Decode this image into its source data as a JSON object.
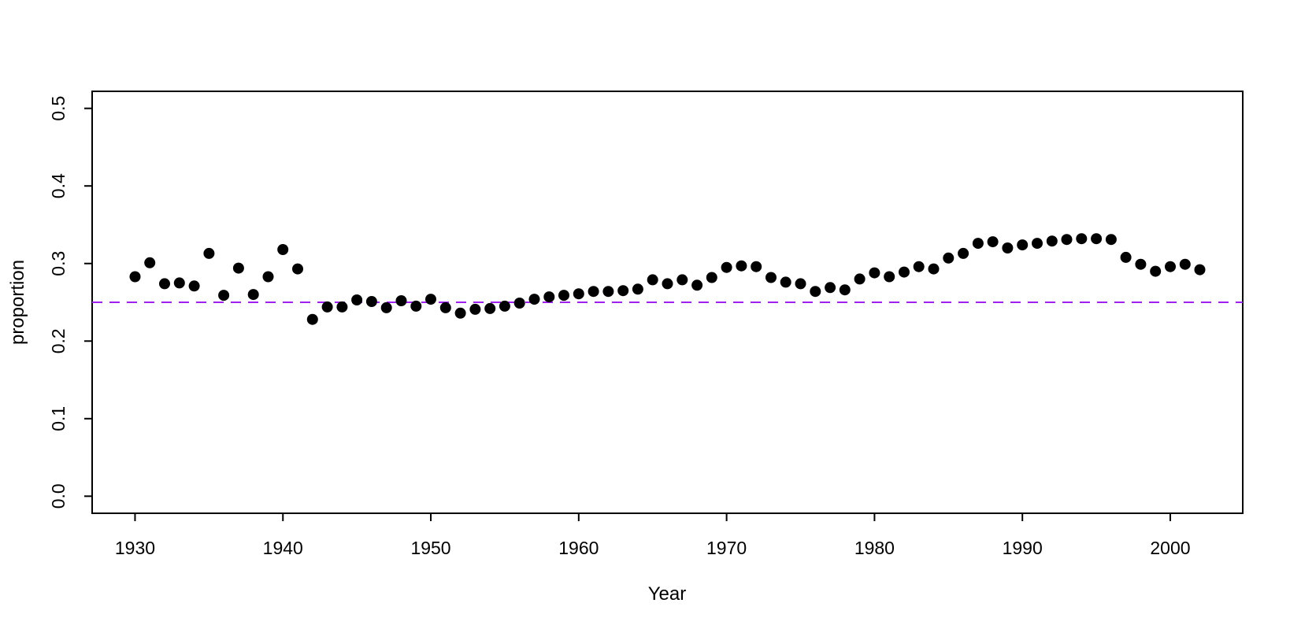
{
  "figure": {
    "background": "#ffffff",
    "plot_background": "#ffffff"
  },
  "chart_data": {
    "type": "scatter",
    "title": "",
    "xlabel": "Year",
    "ylabel": "proportion",
    "x_ticks": [
      1930,
      1940,
      1950,
      1960,
      1970,
      1980,
      1990,
      2000
    ],
    "x_tick_labels": [
      "1930",
      "1940",
      "1950",
      "1960",
      "1970",
      "1980",
      "1990",
      "2000"
    ],
    "y_ticks": [
      0.0,
      0.1,
      0.2,
      0.3,
      0.4,
      0.5
    ],
    "y_tick_labels": [
      "0.0",
      "0.1",
      "0.2",
      "0.3",
      "0.4",
      "0.5"
    ],
    "xlim": [
      1927.1,
      2004.9
    ],
    "ylim": [
      -0.022,
      0.522
    ],
    "grid": false,
    "legend": false,
    "point_color": "#000000",
    "point_radius": 7,
    "axis_color": "#000000",
    "reference_line": {
      "value": 0.25,
      "color": "#A020F0",
      "style": "dashed"
    },
    "series": [
      {
        "name": "proportion",
        "x": [
          1930,
          1931,
          1932,
          1933,
          1934,
          1935,
          1936,
          1937,
          1938,
          1939,
          1940,
          1941,
          1942,
          1943,
          1944,
          1945,
          1946,
          1947,
          1948,
          1949,
          1950,
          1951,
          1952,
          1953,
          1954,
          1955,
          1956,
          1957,
          1958,
          1959,
          1960,
          1961,
          1962,
          1963,
          1964,
          1965,
          1966,
          1967,
          1968,
          1969,
          1970,
          1971,
          1972,
          1973,
          1974,
          1975,
          1976,
          1977,
          1978,
          1979,
          1980,
          1981,
          1982,
          1983,
          1984,
          1985,
          1986,
          1987,
          1988,
          1989,
          1990,
          1991,
          1992,
          1993,
          1994,
          1995,
          1996,
          1997,
          1998,
          1999,
          2000,
          2001,
          2002
        ],
        "y": [
          0.283,
          0.301,
          0.274,
          0.275,
          0.271,
          0.313,
          0.259,
          0.294,
          0.26,
          0.283,
          0.318,
          0.293,
          0.228,
          0.244,
          0.244,
          0.253,
          0.251,
          0.243,
          0.252,
          0.245,
          0.254,
          0.243,
          0.236,
          0.241,
          0.242,
          0.245,
          0.249,
          0.254,
          0.257,
          0.259,
          0.261,
          0.264,
          0.264,
          0.265,
          0.267,
          0.279,
          0.274,
          0.279,
          0.272,
          0.282,
          0.295,
          0.297,
          0.296,
          0.282,
          0.276,
          0.274,
          0.264,
          0.269,
          0.266,
          0.28,
          0.288,
          0.283,
          0.289,
          0.296,
          0.293,
          0.307,
          0.313,
          0.326,
          0.328,
          0.32,
          0.324,
          0.326,
          0.329,
          0.331,
          0.332,
          0.332,
          0.331,
          0.308,
          0.299,
          0.29,
          0.296,
          0.299,
          0.292
        ]
      }
    ]
  }
}
